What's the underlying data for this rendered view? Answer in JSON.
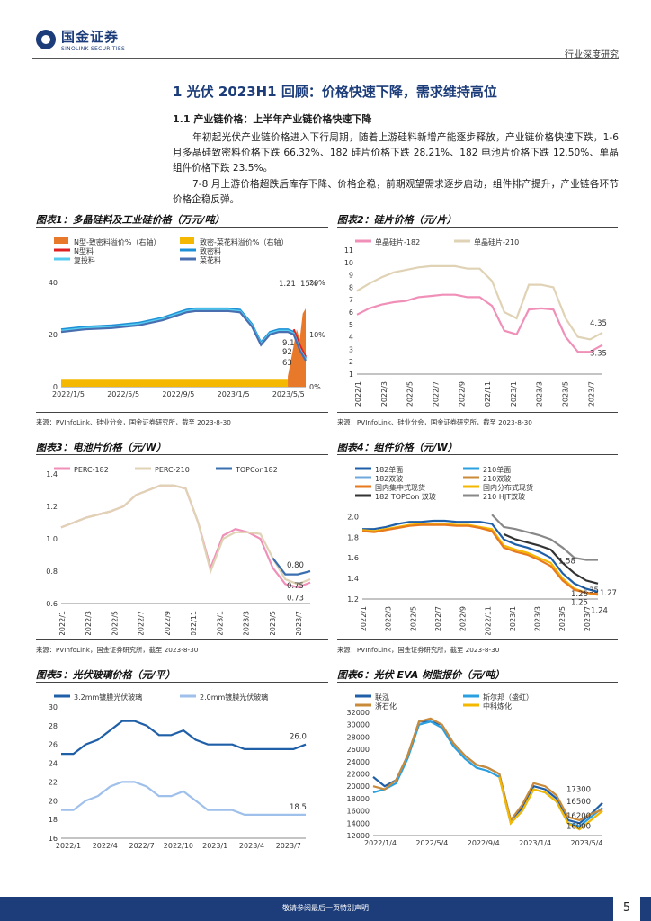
{
  "header": {
    "logo_cn": "国金证券",
    "logo_en": "SINOLINK SECURITIES",
    "report_type": "行业深度研究"
  },
  "section": {
    "title": "1 光伏 2023H1 回顾：价格快速下降，需求维持高位",
    "subtitle": "1.1 产业链价格：上半年产业链价格快速下降",
    "para1": "年初起光伏产业链价格进入下行周期，随着上游硅料新增产能逐步释放，产业链价格快速下跌，1-6 月多晶硅致密料价格下跌 66.32%、182 硅片价格下跌 28.21%、182 电池片价格下跌 12.50%、单晶组件价格下跌 23.5%。",
    "para2": "7-8 月上游价格超跌后库存下降、价格企稳，前期观望需求逐步启动，组件排产提升，产业链各环节价格企稳反弹。"
  },
  "colors": {
    "brand": "#1c3d7a"
  },
  "figures": [
    {
      "title": "图表1：多晶硅料及工业硅价格（万元/吨）",
      "source": "来源：PVInfoLink、硅业分会，国金证券研究所，截至 2023-8-30",
      "chart_data": {
        "type": "line",
        "legend": [
          "N型-致密料溢价%（右轴）",
          "致密-菜花料溢价%（右轴）",
          "N型料",
          "致密料",
          "复投料",
          "菜花料"
        ],
        "series_colors": [
          "#e8792b",
          "#f5b800",
          "#e02020",
          "#1e90d6",
          "#55ccf0",
          "#4a6fb0"
        ],
        "x_ticks": [
          "2022/1/5",
          "2022/5/5",
          "2022/9/5",
          "2023/1/5",
          "2023/5/5"
        ],
        "y_ticks": [
          "0",
          "20",
          "40"
        ],
        "y2_ticks": [
          "0%",
          "10%",
          "20%"
        ],
        "ylim": [
          0,
          40
        ],
        "y2lim": [
          0,
          20
        ],
        "labels": [
          "1.21",
          "15%",
          "9.1",
          "92",
          "63"
        ],
        "x": [
          0,
          8,
          17,
          26,
          34,
          38,
          42,
          45,
          49,
          52,
          56,
          60,
          64,
          67,
          70,
          73,
          76,
          78,
          80,
          82
        ],
        "series": [
          {
            "name": "致密料",
            "values": [
              22,
              23,
              23.5,
              24.5,
              26.5,
              28,
              29.5,
              30,
              30,
              30,
              30,
              29.5,
              24,
              17,
              21,
              22,
              22,
              21,
              15,
              11
            ]
          },
          {
            "name": "N型料",
            "values": [
              null,
              null,
              null,
              null,
              null,
              null,
              null,
              null,
              null,
              null,
              null,
              null,
              null,
              null,
              null,
              null,
              null,
              22,
              16,
              11.5
            ]
          },
          {
            "name": "复投料",
            "values": [
              21.5,
              22.5,
              23,
              24,
              26,
              27.5,
              29,
              29.5,
              29.5,
              29.5,
              29.5,
              29,
              23.5,
              16.5,
              20.5,
              21.5,
              21.5,
              20.5,
              14.5,
              10.5
            ]
          },
          {
            "name": "菜花料",
            "values": [
              21,
              22,
              22.5,
              23.5,
              25.5,
              27,
              28.5,
              29,
              29,
              29,
              29,
              28.5,
              23,
              16,
              20,
              21,
              21,
              20,
              14,
              10
            ]
          }
        ]
      }
    },
    {
      "title": "图表2：硅片价格（元/片）",
      "source": "来源：PVInfoLink、硅业分会，国金证券研究所，截至 2023-8-30",
      "chart_data": {
        "type": "line",
        "legend": [
          "单晶硅片-182",
          "单晶硅片-210"
        ],
        "series_colors": [
          "#f08fb8",
          "#e0d2b4"
        ],
        "x_ticks": [
          "2022/1",
          "2022/3",
          "2022/5",
          "2022/7",
          "2022/9",
          "2022/11",
          "2023/1",
          "2023/3",
          "2023/5",
          "2023/7"
        ],
        "y_ticks": [
          "1",
          "2",
          "3",
          "4",
          "5",
          "6",
          "7",
          "8",
          "9",
          "10",
          "11"
        ],
        "ylim": [
          1,
          11
        ],
        "labels": [
          "4.35",
          "3.35"
        ],
        "x": [
          0,
          1,
          2,
          3,
          4,
          5,
          6,
          7,
          8,
          9,
          10,
          11,
          12,
          13,
          14,
          15,
          16,
          17,
          18,
          19,
          20
        ],
        "series": [
          {
            "name": "单晶硅片-182",
            "values": [
              5.8,
              6.3,
              6.6,
              6.8,
              6.9,
              7.2,
              7.3,
              7.4,
              7.4,
              7.2,
              7.2,
              6.5,
              4.5,
              4.2,
              6.2,
              6.3,
              6.2,
              4.0,
              2.8,
              2.8,
              3.35
            ]
          },
          {
            "name": "单晶硅片-210",
            "values": [
              7.7,
              8.3,
              8.8,
              9.2,
              9.4,
              9.6,
              9.7,
              9.7,
              9.7,
              9.5,
              9.5,
              8.5,
              6.0,
              5.5,
              8.2,
              8.2,
              8.0,
              5.5,
              4.0,
              3.8,
              4.35
            ]
          }
        ]
      }
    },
    {
      "title": "图表3：电池片价格（元/W）",
      "source": "来源：PVInfoLink，国金证券研究所，截至 2023-8-30",
      "chart_data": {
        "type": "line",
        "legend": [
          "PERC-182",
          "PERC-210",
          "TOPCon182"
        ],
        "series_colors": [
          "#f08fb8",
          "#e0d2b4",
          "#3a6fb0"
        ],
        "x_ticks": [
          "2022/1",
          "2022/3",
          "2022/5",
          "2022/7",
          "2022/9",
          "2022/11",
          "2023/1",
          "2023/3",
          "2023/5",
          "2023/7"
        ],
        "y_ticks": [
          "0.6",
          "0.8",
          "1.0",
          "1.2",
          "1.4"
        ],
        "ylim": [
          0.6,
          1.4
        ],
        "labels": [
          "0.80",
          "0.75",
          "0.73"
        ],
        "x": [
          0,
          1,
          2,
          3,
          4,
          5,
          6,
          7,
          8,
          9,
          10,
          11,
          12,
          13,
          14,
          15,
          16,
          17,
          18,
          19,
          20
        ],
        "series": [
          {
            "name": "PERC-182",
            "values": [
              1.07,
              1.1,
              1.13,
              1.15,
              1.17,
              1.2,
              1.27,
              1.3,
              1.33,
              1.33,
              1.31,
              1.1,
              0.82,
              1.02,
              1.06,
              1.04,
              1.0,
              0.82,
              0.72,
              0.7,
              0.73
            ]
          },
          {
            "name": "PERC-210",
            "values": [
              1.07,
              1.1,
              1.13,
              1.15,
              1.17,
              1.2,
              1.27,
              1.3,
              1.33,
              1.33,
              1.31,
              1.1,
              0.8,
              1.0,
              1.04,
              1.04,
              1.03,
              0.88,
              0.75,
              0.72,
              0.75
            ]
          },
          {
            "name": "TOPCon182",
            "values": [
              null,
              null,
              null,
              null,
              null,
              null,
              null,
              null,
              null,
              null,
              null,
              null,
              null,
              null,
              null,
              null,
              null,
              0.88,
              0.78,
              0.78,
              0.8
            ]
          }
        ]
      }
    },
    {
      "title": "图表4：组件价格（元/W）",
      "source": "来源：PVInfoLink，国金证券研究所，截至 2023-8-30",
      "chart_data": {
        "type": "line",
        "legend": [
          "182单面",
          "210单面",
          "182双玻",
          "210双玻",
          "国内集中式现货",
          "国内分布式现货",
          "182 TOPCon 双玻",
          "210 HJT双玻"
        ],
        "series_colors": [
          "#1f5fa8",
          "#2aa0e0",
          "#6fa8dc",
          "#c98b3a",
          "#e87a1e",
          "#f5b800",
          "#333333",
          "#888888"
        ],
        "x_ticks": [
          "2022/1",
          "2022/3",
          "2022/5",
          "2022/7",
          "2022/9",
          "2022/11",
          "2023/1",
          "2023/3",
          "2023/5",
          "2023/7"
        ],
        "y_ticks": [
          "1.2",
          "1.4",
          "1.6",
          "1.8",
          "2.0"
        ],
        "ylim": [
          1.2,
          2.1
        ],
        "labels": [
          "1.58",
          "1.35",
          "1.27",
          "1.26",
          "1.25",
          "1.24"
        ],
        "x": [
          0,
          1,
          2,
          3,
          4,
          5,
          6,
          7,
          8,
          9,
          10,
          11,
          12,
          13,
          14,
          15,
          16,
          17,
          18,
          19,
          20
        ],
        "series": [
          {
            "name": "182单面",
            "values": [
              1.88,
              1.88,
              1.9,
              1.93,
              1.95,
              1.95,
              1.96,
              1.96,
              1.95,
              1.95,
              1.95,
              1.93,
              1.78,
              1.73,
              1.7,
              1.66,
              1.6,
              1.45,
              1.35,
              1.3,
              1.27
            ]
          },
          {
            "name": "182 TOPCon 双玻",
            "values": [
              null,
              null,
              null,
              null,
              null,
              null,
              null,
              null,
              null,
              null,
              null,
              null,
              1.83,
              1.78,
              1.75,
              1.72,
              1.68,
              1.55,
              1.45,
              1.38,
              1.35
            ]
          },
          {
            "name": "210 HJT双玻",
            "values": [
              null,
              null,
              null,
              null,
              null,
              null,
              null,
              null,
              null,
              null,
              null,
              2.02,
              1.9,
              1.88,
              1.85,
              1.82,
              1.78,
              1.7,
              1.6,
              1.58,
              1.58
            ]
          },
          {
            "name": "国内分布式现货",
            "values": [
              1.87,
              1.86,
              1.88,
              1.9,
              1.92,
              1.93,
              1.93,
              1.93,
              1.92,
              1.92,
              1.9,
              1.88,
              1.72,
              1.68,
              1.65,
              1.6,
              1.55,
              1.4,
              1.3,
              1.26,
              1.24
            ]
          },
          {
            "name": "国内集中式现货",
            "values": [
              1.86,
              1.85,
              1.87,
              1.89,
              1.91,
              1.92,
              1.92,
              1.92,
              1.91,
              1.91,
              1.89,
              1.86,
              1.7,
              1.66,
              1.63,
              1.58,
              1.52,
              1.38,
              1.29,
              1.26,
              1.25
            ]
          }
        ]
      }
    },
    {
      "title": "图表5：光伏玻璃价格（元/平）",
      "source": "",
      "chart_data": {
        "type": "line",
        "legend": [
          "3.2mm镀膜光伏玻璃",
          "2.0mm镀膜光伏玻璃"
        ],
        "series_colors": [
          "#1f5fa8",
          "#9fc0ea"
        ],
        "x_ticks": [
          "2022/1",
          "2022/4",
          "2022/7",
          "2022/10",
          "2023/1",
          "2023/4",
          "2023/7"
        ],
        "y_ticks": [
          "16",
          "18",
          "20",
          "22",
          "24",
          "26",
          "28",
          "30"
        ],
        "ylim": [
          16,
          30
        ],
        "labels": [
          "26.0",
          "18.5"
        ],
        "x": [
          0,
          1,
          2,
          3,
          4,
          5,
          6,
          7,
          8,
          9,
          10,
          11,
          12,
          13,
          14,
          15,
          16,
          17,
          18,
          19,
          20
        ],
        "series": [
          {
            "name": "3.2mm镀膜光伏玻璃",
            "values": [
              25,
              25,
              26,
              26.5,
              27.5,
              28.5,
              28.5,
              28,
              27,
              27,
              27.5,
              26.5,
              26,
              26,
              26,
              25.5,
              25.5,
              25.5,
              25.5,
              25.5,
              26.0
            ]
          },
          {
            "name": "2.0mm镀膜光伏玻璃",
            "values": [
              19,
              19,
              20,
              20.5,
              21.5,
              22,
              22,
              21.5,
              20.5,
              20.5,
              21,
              20,
              19,
              19,
              19,
              18.5,
              18.5,
              18.5,
              18.5,
              18.5,
              18.5
            ]
          }
        ]
      }
    },
    {
      "title": "图表6：光伏 EVA 树脂报价（元/吨）",
      "source": "",
      "chart_data": {
        "type": "line",
        "legend": [
          "联泓",
          "斯尔邦（盛虹）",
          "浙石化",
          "中科炼化"
        ],
        "series_colors": [
          "#1f5fa8",
          "#2aa0e0",
          "#c98b3a",
          "#f5b800"
        ],
        "x_ticks": [
          "2022/1/4",
          "2022/5/4",
          "2022/9/4",
          "2023/1/4",
          "2023/5/4"
        ],
        "y_ticks": [
          "12000",
          "14000",
          "16000",
          "18000",
          "20000",
          "22000",
          "24000",
          "26000",
          "28000",
          "30000",
          "32000"
        ],
        "ylim": [
          12000,
          32000
        ],
        "labels": [
          "17300",
          "16500",
          "16200",
          "16000"
        ],
        "x": [
          0,
          1,
          2,
          3,
          4,
          5,
          6,
          7,
          8,
          9,
          10,
          11,
          12,
          13,
          14,
          15,
          16,
          17,
          18,
          19,
          20
        ],
        "series": [
          {
            "name": "联泓",
            "values": [
              21500,
              20000,
              21000,
              25000,
              30500,
              30500,
              30000,
              27000,
              25000,
              23500,
              23000,
              22000,
              14500,
              16500,
              20000,
              19500,
              18000,
              14500,
              14000,
              15500,
              17300
            ]
          },
          {
            "name": "斯尔邦（盛虹）",
            "values": [
              19000,
              19500,
              20500,
              24500,
              30000,
              30500,
              29500,
              26500,
              24500,
              23000,
              22500,
              21500,
              14000,
              16000,
              19500,
              19000,
              17500,
              14000,
              13500,
              15000,
              16500
            ]
          },
          {
            "name": "浙石化",
            "values": [
              20000,
              19500,
              21000,
              25000,
              30500,
              31000,
              30000,
              27000,
              25000,
              23500,
              23000,
              22000,
              14500,
              17000,
              20500,
              20000,
              18500,
              15000,
              14500,
              15500,
              16200
            ]
          },
          {
            "name": "中科炼化",
            "values": [
              null,
              null,
              null,
              null,
              null,
              null,
              null,
              null,
              null,
              null,
              null,
              21500,
              14000,
              16000,
              19500,
              19000,
              17500,
              14000,
              13000,
              14500,
              16000
            ]
          }
        ]
      }
    }
  ],
  "footer": {
    "disclaimer": "敬请参阅最后一页特别声明",
    "page": "5"
  }
}
